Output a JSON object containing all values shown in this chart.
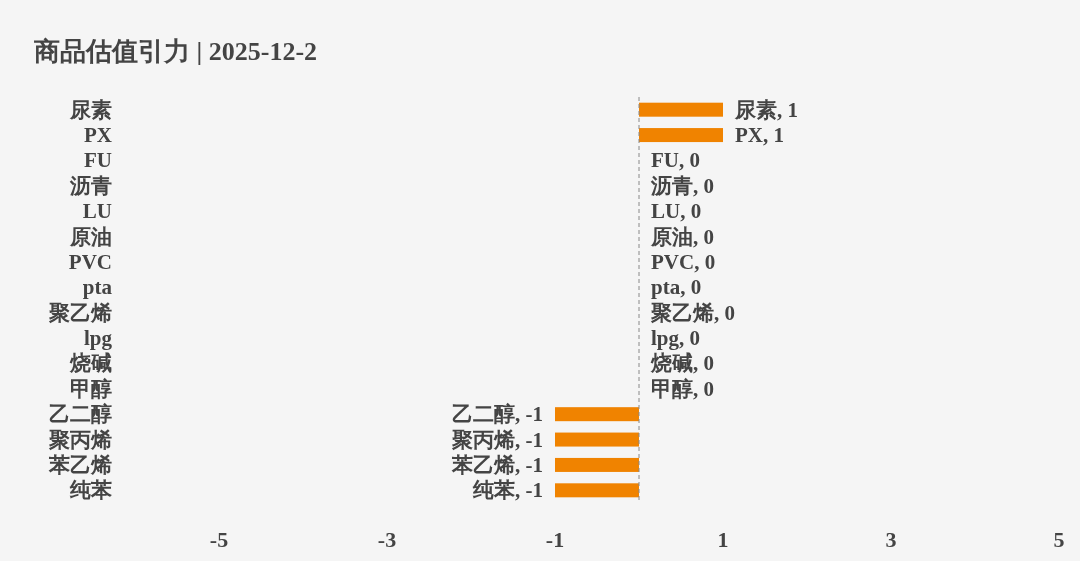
{
  "chart_data": {
    "type": "bar",
    "orientation": "horizontal",
    "title": "商品估值引力 | 2025-12-2",
    "categories": [
      "尿素",
      "PX",
      "FU",
      "沥青",
      "LU",
      "原油",
      "PVC",
      "pta",
      "聚乙烯",
      "lpg",
      "烧碱",
      "甲醇",
      "乙二醇",
      "聚丙烯",
      "苯乙烯",
      "纯苯"
    ],
    "values": [
      1,
      1,
      0,
      0,
      0,
      0,
      0,
      0,
      0,
      0,
      0,
      0,
      -1,
      -1,
      -1,
      -1
    ],
    "value_labels": [
      "尿素, 1",
      "PX, 1",
      "FU, 0",
      "沥青, 0",
      "LU, 0",
      "原油, 0",
      "PVC, 0",
      "pta, 0",
      "聚乙烯, 0",
      "lpg, 0",
      "烧碱, 0",
      "甲醇, 0",
      "乙二醇, -1",
      "聚丙烯, -1",
      "苯乙烯, -1",
      "纯苯, -1"
    ],
    "color": "#f08300",
    "xlim": [
      -5,
      5
    ],
    "xticks": [
      -5,
      -3,
      -1,
      1,
      3,
      5
    ],
    "ref_lines": [
      {
        "axis": "x",
        "value": 0,
        "label": null,
        "color": "#888888",
        "line_style": "dashed"
      }
    ]
  }
}
